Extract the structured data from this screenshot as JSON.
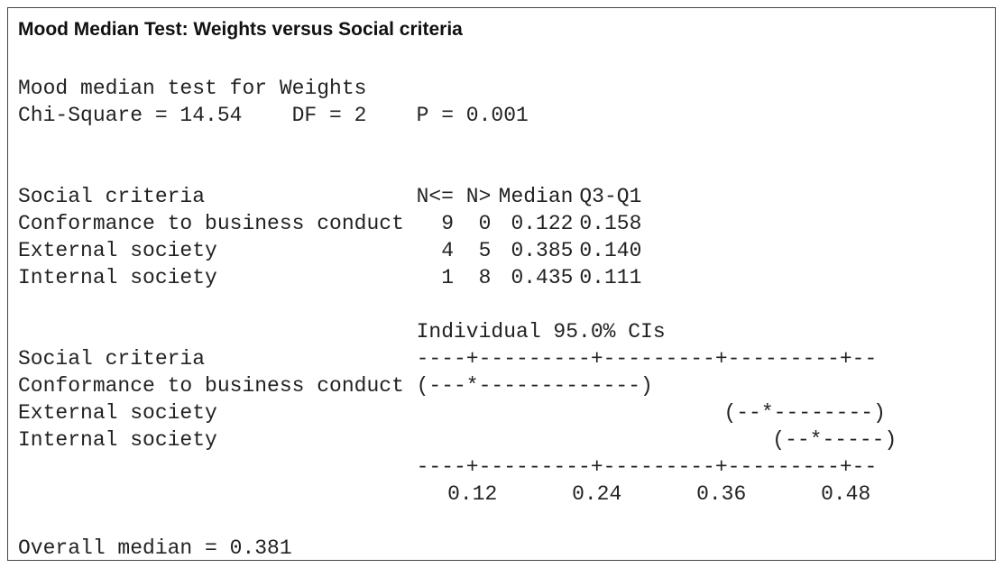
{
  "title": "Mood Median Test: Weights versus Social criteria",
  "test": {
    "name": "Mood median test for Weights",
    "chi_square": "Chi-Square = 14.54",
    "df": "DF = 2",
    "p": "P = 0.001"
  },
  "table": {
    "header": [
      "Social criteria",
      "N<=",
      "N>",
      "Median",
      "Q3-Q1"
    ],
    "rows": [
      [
        "Conformance to business conduct",
        "9",
        "0",
        "0.122",
        "0.158"
      ],
      [
        "External society",
        "4",
        "5",
        "0.385",
        "0.140"
      ],
      [
        "Internal society",
        "1",
        "8",
        "0.435",
        "0.111"
      ]
    ]
  },
  "ci": {
    "title": "Individual 95.0% CIs",
    "header": "Social criteria",
    "axis": "----+---------+---------+---------+--",
    "rows": [
      [
        "Conformance to business conduct",
        "(---*-------------)"
      ],
      [
        "External society",
        "(--*--------)"
      ],
      [
        "Internal society",
        "(--*-----)"
      ]
    ],
    "ticks": [
      "0.12",
      "0.24",
      "0.36",
      "0.48"
    ]
  },
  "overall": "Overall median = 0.381"
}
